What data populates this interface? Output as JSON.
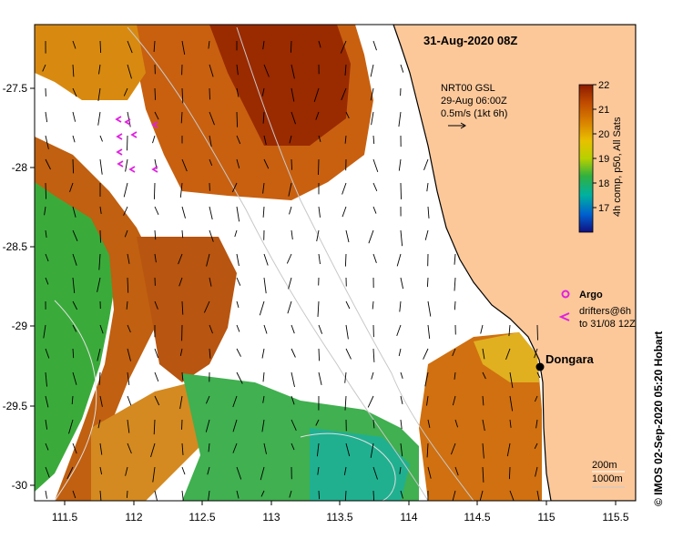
{
  "title": "31-Aug-2020 08Z",
  "credit": "© IMOS 02-Sep-2020 05:20 Hobart",
  "current_legend": {
    "line1": "NRT00 GSL",
    "line2": "29-Aug 06:00Z",
    "line3": "0.5m/s (1kt 6h)"
  },
  "colorbar": {
    "ticks": [
      "22",
      "21",
      "20",
      "19",
      "18",
      "17"
    ],
    "label": "4h comp, p50, All Sats",
    "colors": [
      "#8b1a00",
      "#c04a00",
      "#d88000",
      "#e8c000",
      "#b8d000",
      "#30b040",
      "#00b0a0",
      "#0060d0",
      "#101080"
    ]
  },
  "argo_legend": {
    "argo_label": "Argo",
    "drifter_line1": "drifters@6h",
    "drifter_line2": "to 31/08 12Z",
    "argo_color": "#e020e0",
    "drifter_color": "#e020e0"
  },
  "place": {
    "name": "Dongara"
  },
  "depth_legend": {
    "c200": "200m",
    "c1000": "1000m"
  },
  "axes": {
    "x_ticks": [
      "111.5",
      "112",
      "112.5",
      "113",
      "113.5",
      "114",
      "114.5",
      "115",
      "115.5"
    ],
    "y_ticks": [
      "-27.5",
      "-28",
      "-28.5",
      "-29",
      "-29.5",
      "-30"
    ]
  },
  "map_colors": {
    "land": "#fcc89a",
    "no_data": "#ffffff",
    "coast": "#000000"
  }
}
